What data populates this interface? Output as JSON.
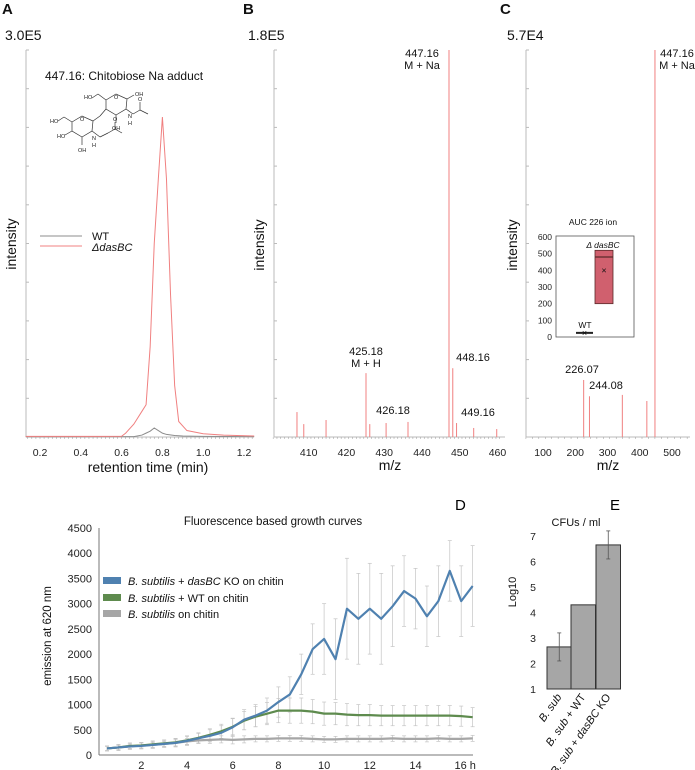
{
  "panel_labels": {
    "A": "A",
    "B": "B",
    "C": "C",
    "D": "D",
    "E": "E"
  },
  "structure_atom_labels": [
    "HO",
    "OH",
    "O",
    "HO",
    "O",
    "HO",
    "OH",
    "N",
    "H",
    "O",
    "OH",
    "N",
    "H",
    "O"
  ],
  "chart_data": [
    {
      "id": "A",
      "type": "line",
      "title": "447.16: Chitobiose Na adduct",
      "scale_label": "3.0E5",
      "ylabel": "intensity",
      "xlabel": "retention time (min)",
      "xlim": [
        0.13,
        1.25
      ],
      "ylim": [
        0,
        300000
      ],
      "xticks": [
        0.2,
        0.4,
        0.6,
        0.8,
        1.0,
        1.2
      ],
      "xtick_labels": [
        "0.2",
        "0.4",
        "0.6",
        "0.8",
        "1.0",
        "1.2"
      ],
      "legend_position": "upper-left",
      "series": [
        {
          "name": "WT",
          "color": "#8c8c8c",
          "x": [
            0.13,
            0.4,
            0.66,
            0.7,
            0.72,
            0.74,
            0.76,
            0.78,
            0.8,
            0.82,
            0.86,
            0.9,
            1.0,
            1.25
          ],
          "y": [
            200,
            200,
            300,
            1500,
            3000,
            4500,
            7000,
            5000,
            3000,
            2000,
            1200,
            800,
            500,
            300
          ]
        },
        {
          "name": "ΔdasBC",
          "color": "#f08080",
          "x": [
            0.13,
            0.5,
            0.6,
            0.62,
            0.66,
            0.7,
            0.72,
            0.74,
            0.76,
            0.78,
            0.8,
            0.82,
            0.84,
            0.86,
            0.88,
            0.92,
            1.0,
            1.1,
            1.25
          ],
          "y": [
            500,
            500,
            600,
            3000,
            10000,
            20000,
            25000,
            70000,
            150000,
            200000,
            248000,
            200000,
            110000,
            40000,
            12000,
            5000,
            2500,
            1500,
            800
          ]
        }
      ]
    },
    {
      "id": "B",
      "type": "bar",
      "subtype": "mass-spectrum",
      "scale_label": "1.8E5",
      "ylabel": "intensity",
      "xlabel": "m/z",
      "xlim": [
        400.6,
        461
      ],
      "ylim": [
        0,
        180000
      ],
      "xticks": [
        410,
        420,
        430,
        440,
        450,
        460
      ],
      "xtick_labels": [
        "410",
        "420",
        "430",
        "440",
        "450",
        "460"
      ],
      "color": "#f08080",
      "peaks": [
        {
          "mz": 447.16,
          "intensity": 180000,
          "label": "447.16",
          "label2": "M + Na"
        },
        {
          "mz": 448.16,
          "intensity": 32000,
          "label": "448.16"
        },
        {
          "mz": 425.18,
          "intensity": 29700,
          "label": "425.18",
          "label2": "M + H"
        },
        {
          "mz": 426.18,
          "intensity": 6000,
          "label": "426.18"
        },
        {
          "mz": 449.16,
          "intensity": 6500,
          "label": "449.16"
        },
        {
          "mz": 406.9,
          "intensity": 11600
        },
        {
          "mz": 408.7,
          "intensity": 6000
        },
        {
          "mz": 414.6,
          "intensity": 7900
        },
        {
          "mz": 430.5,
          "intensity": 6500
        },
        {
          "mz": 436.3,
          "intensity": 7000
        },
        {
          "mz": 453.7,
          "intensity": 4200
        },
        {
          "mz": 459.8,
          "intensity": 3700
        }
      ]
    },
    {
      "id": "C",
      "type": "bar",
      "subtype": "mass-spectrum",
      "scale_label": "5.7E4",
      "ylabel": "intensity",
      "xlabel": "m/z",
      "xlim": [
        47,
        556
      ],
      "ylim": [
        0,
        57000
      ],
      "xticks": [
        100,
        200,
        300,
        400,
        500
      ],
      "xtick_labels": [
        "100",
        "200",
        "300",
        "400",
        "500"
      ],
      "color": "#f08080",
      "peaks": [
        {
          "mz": 447.16,
          "intensity": 57000,
          "label": "447.16",
          "label2": "M + Na"
        },
        {
          "mz": 226.07,
          "intensity": 8400,
          "label": "226.07"
        },
        {
          "mz": 244.08,
          "intensity": 6000,
          "label": "244.08"
        },
        {
          "mz": 346,
          "intensity": 6200
        },
        {
          "mz": 422,
          "intensity": 5300
        }
      ],
      "inset": {
        "type": "box",
        "title": "AUC 226 ion",
        "ylim": [
          0,
          600
        ],
        "yticks": [
          0,
          100,
          200,
          300,
          400,
          500,
          600
        ],
        "ytick_labels": [
          "0",
          "100",
          "200",
          "300",
          "400",
          "500",
          "600"
        ],
        "boxes": [
          {
            "name": "WT",
            "q1": 20,
            "median": 25,
            "q3": 30,
            "mean": 25,
            "color": "#222222"
          },
          {
            "name": "Δ dasBC",
            "q1": 200,
            "median": 480,
            "q3": 520,
            "mean": 400,
            "color": "#d0606e"
          }
        ]
      }
    },
    {
      "id": "D",
      "type": "line",
      "title": "Fluorescence based growth curves",
      "ylabel": "emission at 620 nm",
      "xlabel": "",
      "xlim": [
        0.2,
        16.5
      ],
      "ylim": [
        0,
        4500
      ],
      "yticks": [
        0,
        500,
        1000,
        1500,
        2000,
        2500,
        3000,
        3500,
        4000,
        4500
      ],
      "ytick_labels": [
        "0",
        "500",
        "1000",
        "1500",
        "2000",
        "2500",
        "3000",
        "3500",
        "4000",
        "4500"
      ],
      "xticks": [
        2,
        4,
        6,
        8,
        10,
        12,
        14,
        16
      ],
      "xtick_labels": [
        "2",
        "4",
        "6",
        "8",
        "10",
        "12",
        "14",
        "16 h"
      ],
      "legend_position": "left-center",
      "x": [
        0.5,
        1,
        1.5,
        2,
        2.5,
        3,
        3.5,
        4,
        4.5,
        5,
        5.5,
        6,
        6.5,
        7,
        7.5,
        8,
        8.5,
        9,
        9.5,
        10,
        10.5,
        11,
        11.5,
        12,
        12.5,
        13,
        13.5,
        14,
        14.5,
        15,
        15.5,
        16,
        16.5
      ],
      "series": [
        {
          "name_parts": [
            "B. subtilis",
            " + ",
            "dasBC",
            " KO on chitin"
          ],
          "color": "#4f81b0",
          "y": [
            130,
            150,
            170,
            180,
            200,
            220,
            240,
            280,
            330,
            380,
            440,
            550,
            700,
            780,
            880,
            1050,
            1200,
            1600,
            2100,
            2300,
            1900,
            2900,
            2700,
            2900,
            2700,
            2950,
            3250,
            3100,
            2750,
            3050,
            3650,
            3050,
            3350
          ],
          "err": [
            50,
            60,
            60,
            60,
            70,
            70,
            80,
            90,
            100,
            120,
            140,
            180,
            200,
            220,
            250,
            300,
            350,
            400,
            500,
            700,
            800,
            1000,
            900,
            900,
            900,
            800,
            700,
            600,
            600,
            700,
            600,
            700,
            800
          ]
        },
        {
          "name_parts": [
            "B. subtilis",
            " + WT on chitin",
            "",
            ""
          ],
          "color": "#5e8b4e",
          "y": [
            130,
            150,
            180,
            190,
            210,
            230,
            250,
            290,
            340,
            400,
            470,
            560,
            680,
            760,
            820,
            880,
            880,
            880,
            860,
            820,
            820,
            800,
            790,
            790,
            780,
            780,
            780,
            780,
            780,
            780,
            780,
            770,
            750
          ],
          "err": [
            50,
            60,
            60,
            60,
            70,
            70,
            80,
            90,
            100,
            120,
            140,
            160,
            180,
            200,
            220,
            240,
            250,
            250,
            240,
            230,
            220,
            220,
            210,
            210,
            200,
            200,
            200,
            200,
            200,
            200,
            200,
            200,
            190
          ]
        },
        {
          "name_parts": [
            "B. subtilis",
            " on chitin",
            "",
            ""
          ],
          "color": "#a6a6a6",
          "y": [
            130,
            150,
            170,
            190,
            200,
            220,
            240,
            270,
            290,
            300,
            310,
            300,
            310,
            320,
            320,
            330,
            330,
            330,
            320,
            310,
            310,
            320,
            320,
            320,
            320,
            330,
            320,
            320,
            320,
            330,
            320,
            320,
            330
          ],
          "err": [
            40,
            40,
            40,
            50,
            50,
            50,
            60,
            60,
            60,
            70,
            70,
            80,
            70,
            60,
            60,
            60,
            60,
            60,
            60,
            60,
            60,
            60,
            60,
            60,
            60,
            60,
            60,
            60,
            60,
            60,
            60,
            60,
            60
          ]
        }
      ]
    },
    {
      "id": "E",
      "type": "bar",
      "title": "CFUs / ml",
      "ylabel": "Log10",
      "ylim": [
        1,
        7
      ],
      "yticks": [
        1,
        2,
        3,
        4,
        5,
        6,
        7
      ],
      "ytick_labels": [
        "1",
        "2",
        "3",
        "4",
        "5",
        "6",
        "7"
      ],
      "color": "#a6a6a6",
      "categories": [
        {
          "parts": [
            "B. sub",
            "",
            "",
            ""
          ]
        },
        {
          "parts": [
            "B. sub",
            " + WT",
            "",
            ""
          ]
        },
        {
          "parts": [
            "B. sub",
            " + ",
            "dasBC",
            " KO"
          ]
        }
      ],
      "values": [
        2.65,
        4.3,
        6.65
      ],
      "errors": [
        0.55,
        0,
        0.55
      ]
    }
  ]
}
